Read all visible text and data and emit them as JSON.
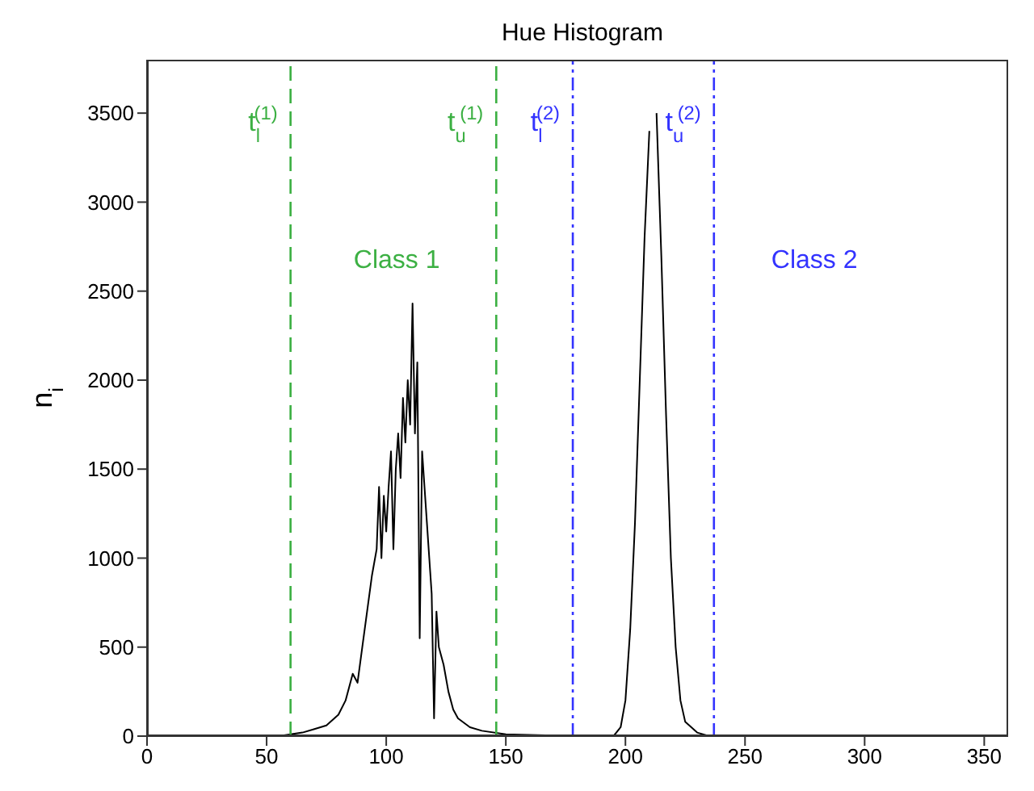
{
  "chart_data": {
    "type": "line",
    "title": "Hue Histogram",
    "ylabel": "n$_{i}$",
    "x": [
      0,
      20,
      40,
      55,
      60,
      65,
      70,
      75,
      80,
      83,
      86,
      88,
      90,
      92,
      94,
      96,
      97,
      98,
      99,
      100,
      101,
      102,
      103,
      104,
      105,
      106,
      107,
      108,
      109,
      110,
      111,
      112,
      113,
      114,
      115,
      116,
      117,
      118,
      119,
      120,
      121,
      122,
      124,
      126,
      128,
      130,
      135,
      140,
      150,
      180,
      195,
      198,
      200,
      202,
      204,
      206,
      208,
      210,
      211,
      212,
      213,
      215,
      217,
      219,
      221,
      223,
      225,
      230,
      235,
      260,
      300,
      360
    ],
    "series": [
      {
        "color": "#000000",
        "values": [
          0,
          0,
          0,
          0,
          10,
          20,
          40,
          60,
          120,
          200,
          350,
          300,
          500,
          700,
          900,
          1050,
          1400,
          1000,
          1350,
          1150,
          1400,
          1600,
          1050,
          1500,
          1700,
          1450,
          1900,
          1650,
          2000,
          1750,
          2430,
          1700,
          2100,
          550,
          1600,
          1400,
          1200,
          1000,
          800,
          100,
          700,
          500,
          400,
          250,
          150,
          100,
          50,
          30,
          10,
          0,
          0,
          50,
          200,
          600,
          1200,
          2000,
          2800,
          3400,
          null,
          null,
          3500,
          2700,
          1800,
          1000,
          500,
          200,
          80,
          20,
          0,
          0,
          0,
          0
        ]
      }
    ],
    "xlim": [
      0,
      360
    ],
    "xticks": [
      0,
      50,
      100,
      150,
      200,
      250,
      300,
      350
    ],
    "ylim": [
      0,
      3800
    ],
    "yticks": [
      0,
      500,
      1000,
      1500,
      2000,
      2500,
      3000,
      3500
    ],
    "marker": "none",
    "line_style": "solid",
    "ref_lines": [
      {
        "axis": "x",
        "value": 60,
        "label": "t$_{l}$$^{(1)}$",
        "color": "#3cb043",
        "line_style": "dashed"
      },
      {
        "axis": "x",
        "value": 146,
        "label": "t$_{u}$$^{(1)}$",
        "color": "#3cb043",
        "line_style": "dashed"
      },
      {
        "axis": "x",
        "value": 178,
        "label": "t$_{l}$$^{(2)}$",
        "color": "#3333ff",
        "line_style": "dotted"
      },
      {
        "axis": "x",
        "value": 237,
        "label": "t$_{u}$$^{(2)}$",
        "color": "#3333ff",
        "line_style": "dotted"
      }
    ],
    "annotations": [
      "Class 1",
      "Class 2"
    ]
  }
}
